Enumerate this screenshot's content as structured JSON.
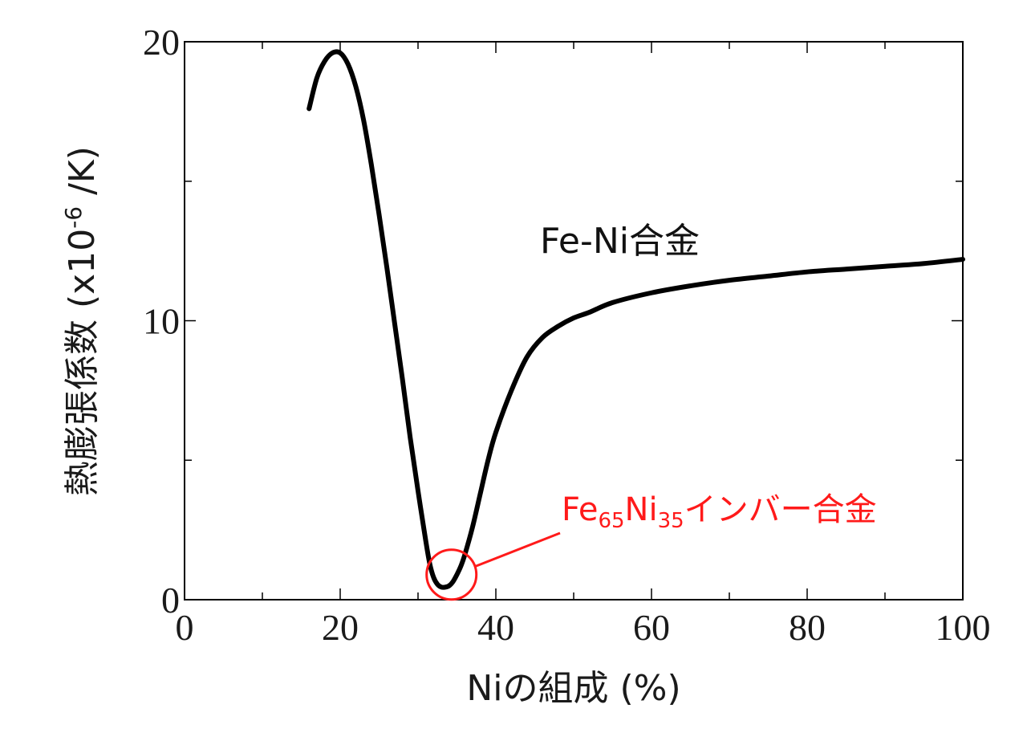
{
  "chart_data": {
    "type": "line",
    "title": "",
    "xlabel": "Niの組成 (%)",
    "ylabel": {
      "main": "熱膨張係数 (x10",
      "sup": "-6",
      "tail": " /K)"
    },
    "xlim": [
      0,
      100
    ],
    "ylim": [
      0,
      20
    ],
    "x_ticks": [
      0,
      20,
      40,
      60,
      80,
      100
    ],
    "y_ticks": [
      0,
      10,
      20
    ],
    "x_minor_step": 10,
    "y_minor_step": 5,
    "grid": false,
    "legend": "none",
    "series": [
      {
        "color": "#000000",
        "x": [
          16.0,
          17.0,
          18.0,
          19.0,
          20.0,
          21.0,
          22.0,
          23.0,
          24.0,
          25.0,
          26.0,
          27.0,
          28.0,
          29.0,
          30.0,
          31.0,
          31.5,
          32.0,
          32.5,
          33.0,
          33.5,
          34.0,
          34.5,
          35.0,
          35.5,
          36.0,
          37.0,
          38.0,
          39.0,
          40.0,
          42.0,
          44.0,
          46.0,
          48.0,
          50.0,
          52.0,
          55.0,
          60.0,
          65.0,
          70.0,
          75.0,
          80.0,
          85.0,
          90.0,
          95.0,
          100.0
        ],
        "y": [
          17.6,
          18.7,
          19.3,
          19.6,
          19.6,
          19.2,
          18.4,
          17.2,
          15.6,
          13.8,
          11.9,
          9.9,
          7.9,
          5.8,
          3.9,
          2.1,
          1.3,
          0.8,
          0.55,
          0.45,
          0.45,
          0.5,
          0.65,
          0.9,
          1.2,
          1.6,
          2.6,
          3.8,
          5.0,
          6.0,
          7.5,
          8.7,
          9.4,
          9.8,
          10.1,
          10.3,
          10.65,
          11.0,
          11.25,
          11.45,
          11.6,
          11.75,
          11.85,
          11.95,
          12.05,
          12.2
        ]
      }
    ],
    "annotations": [
      {
        "text": "Fe-Ni合金",
        "color": "#111111"
      },
      {
        "text_parts": [
          "Fe",
          "65",
          "Ni",
          "35",
          "インバー合金"
        ],
        "color": "#ff1a1a",
        "marker": "circle",
        "circle_center": [
          34.3,
          0.9
        ]
      }
    ]
  }
}
